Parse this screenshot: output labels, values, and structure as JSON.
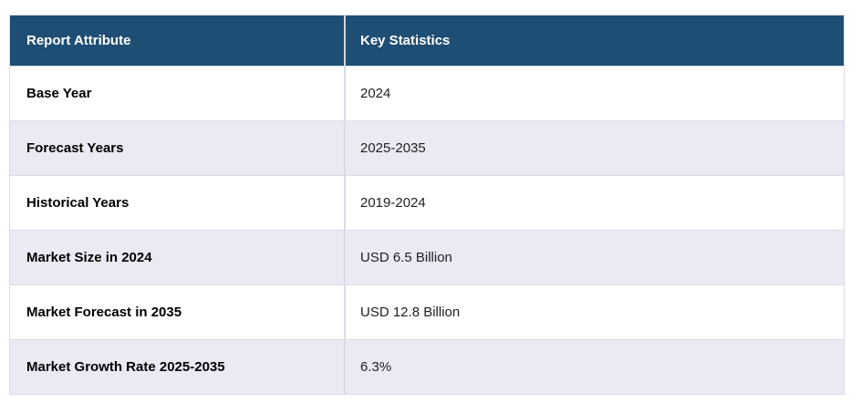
{
  "page": {
    "background_color": "#ffffff"
  },
  "table": {
    "header": {
      "attribute_label": "Report Attribute",
      "statistics_label": "Key Statistics"
    },
    "rows": [
      {
        "attribute": "Base Year",
        "value": "2024"
      },
      {
        "attribute": "Forecast Years",
        "value": "2025-2035"
      },
      {
        "attribute": "Historical Years",
        "value": "2019-2024"
      },
      {
        "attribute": "Market Size in 2024",
        "value": "USD 6.5 Billion"
      },
      {
        "attribute": "Market Forecast in 2035",
        "value": "USD 12.8 Billion"
      },
      {
        "attribute": "Market Growth Rate 2025-2035",
        "value": "6.3%"
      }
    ],
    "colors": {
      "header_background": "#1f4e74",
      "header_text": "#ffffff",
      "row_background": "#ffffff",
      "row_alt_background": "#e9eaf4",
      "border": "#d8dce4",
      "attribute_text": "#000000",
      "value_text": "#1f1f1f"
    }
  }
}
